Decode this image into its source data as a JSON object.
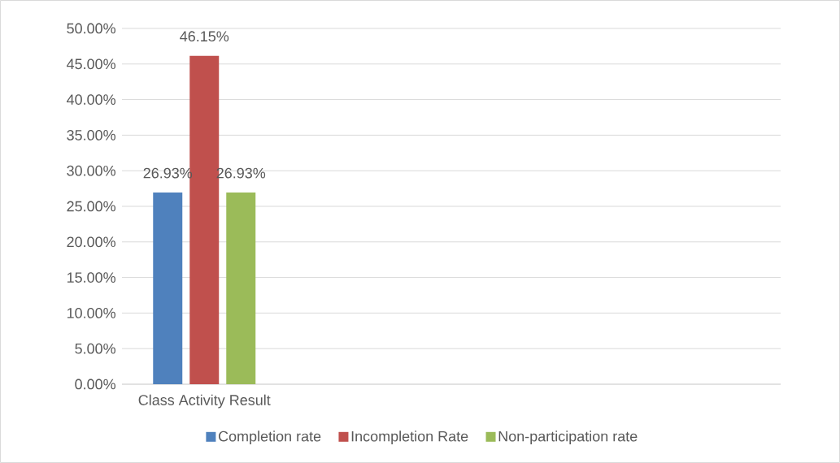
{
  "chart_data": {
    "type": "bar",
    "categories": [
      "Class Activity Result",
      null,
      null,
      null
    ],
    "series": [
      {
        "name": "Completion rate",
        "color": "#4f81bd",
        "values": [
          26.93,
          null,
          null,
          null
        ],
        "value_labels": [
          "26.93%",
          null,
          null,
          null
        ]
      },
      {
        "name": "Incompletion Rate",
        "color": "#c0504d",
        "values": [
          46.15,
          null,
          null,
          null
        ],
        "value_labels": [
          "46.15%",
          null,
          null,
          null
        ]
      },
      {
        "name": "Non-participation rate",
        "color": "#9bbb59",
        "values": [
          26.93,
          null,
          null,
          null
        ],
        "value_labels": [
          "26.93%",
          null,
          null,
          null
        ]
      }
    ],
    "ylim": [
      0,
      50
    ],
    "yticks": [
      {
        "value": 0,
        "label": "0.00%"
      },
      {
        "value": 5,
        "label": "5.00%"
      },
      {
        "value": 10,
        "label": "10.00%"
      },
      {
        "value": 15,
        "label": "15.00%"
      },
      {
        "value": 20,
        "label": "20.00%"
      },
      {
        "value": 25,
        "label": "25.00%"
      },
      {
        "value": 30,
        "label": "30.00%"
      },
      {
        "value": 35,
        "label": "35.00%"
      },
      {
        "value": 40,
        "label": "40.00%"
      },
      {
        "value": 45,
        "label": "45.00%"
      },
      {
        "value": 50,
        "label": "50.00%"
      }
    ],
    "grid": "y",
    "legend": "bottom"
  }
}
